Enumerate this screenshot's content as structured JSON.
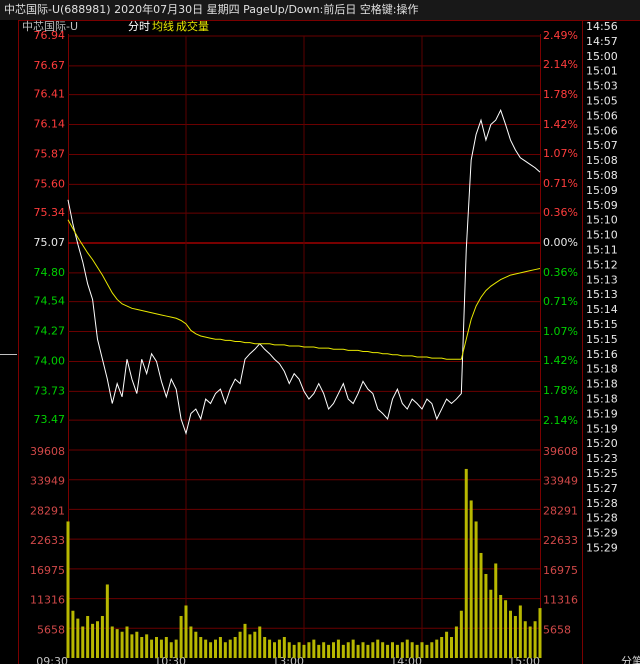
{
  "chart_data": {
    "type": "intraday",
    "title": "中芯国际-U(688981) 2020年07月30日 星期四 PageUp/Down:前后日 空格键:操作",
    "subtitle": "中芯国际-U",
    "x": [
      0,
      2.5,
      5,
      7.5,
      10,
      12.5,
      15,
      17.5,
      20,
      22.5,
      25,
      27.5,
      30,
      32.5,
      35,
      37.5,
      40,
      42.5,
      45,
      47.5,
      50,
      52.5,
      55,
      57.5,
      60,
      62.5,
      65,
      67.5,
      70,
      72.5,
      75,
      77.5,
      80,
      82.5,
      85,
      87.5,
      90,
      92.5,
      95,
      97.5,
      100,
      102.5,
      105,
      107.5,
      110,
      112.5,
      115,
      117.5,
      120,
      122.5,
      125,
      127.5,
      130,
      132.5,
      135,
      137.5,
      140,
      142.5,
      145,
      147.5,
      150,
      152.5,
      155,
      157.5,
      160,
      162.5,
      165,
      167.5,
      170,
      172.5,
      175,
      177.5,
      180,
      182.5,
      185,
      187.5,
      190,
      192.5,
      195,
      197.5,
      200,
      202.5,
      205,
      207.5,
      210,
      212.5,
      215,
      217.5,
      220,
      222.5,
      225,
      227.5,
      230,
      232.5,
      235,
      237.5,
      240
    ],
    "xlim": [
      0,
      240
    ],
    "xticks": [
      {
        "value": 0,
        "label": "09:30"
      },
      {
        "value": 60,
        "label": "10:30"
      },
      {
        "value": 120,
        "label": "13:00"
      },
      {
        "value": 180,
        "label": "14:00"
      },
      {
        "value": 240,
        "label": "15:00"
      }
    ],
    "ylim": [
      73.2,
      76.94
    ],
    "yticks": [
      76.94,
      76.67,
      76.41,
      76.14,
      75.87,
      {
        "value": 75.6,
        "label": "75.60"
      },
      75.34,
      75.07,
      {
        "value": 74.8,
        "label": "74.80"
      },
      74.54,
      74.27,
      {
        "value": 74,
        "label": "74.00"
      },
      73.73,
      73.47
    ],
    "y2lim": [
      -2.49,
      2.49
    ],
    "y2ticks": [
      {
        "value": 2.49,
        "label": "2.49%"
      },
      {
        "value": 2.14,
        "label": "2.14%"
      },
      {
        "value": 1.78,
        "label": "1.78%"
      },
      {
        "value": 1.42,
        "label": "1.42%"
      },
      {
        "value": 1.07,
        "label": "1.07%"
      },
      {
        "value": 0.71,
        "label": "0.71%"
      },
      {
        "value": 0.36,
        "label": "0.36%"
      },
      {
        "value": 0,
        "label": "0.00%"
      },
      {
        "value": -0.36,
        "label": "0.36%"
      },
      {
        "value": -0.71,
        "label": "0.71%"
      },
      {
        "value": -1.07,
        "label": "1.07%"
      },
      {
        "value": -1.42,
        "label": "1.42%"
      },
      {
        "value": -1.78,
        "label": "1.78%"
      },
      {
        "value": -2.14,
        "label": "2.14%"
      }
    ],
    "volume_ylim": [
      0,
      39608
    ],
    "volume_yticks": [
      39608,
      33949,
      28291,
      22633,
      16975,
      11316,
      5658
    ],
    "grid": true,
    "up_color": "#ff3c3c",
    "down_color": "#00d000",
    "flat_color": "#e8e8e8",
    "series": [
      {
        "name": "分时",
        "color": "#ffffff",
        "values": [
          75.46,
          75.24,
          75.06,
          74.9,
          74.7,
          74.56,
          74.2,
          74.02,
          73.84,
          73.62,
          73.8,
          73.68,
          74.02,
          73.84,
          73.71,
          74.02,
          73.89,
          74.07,
          74.0,
          73.82,
          73.68,
          73.84,
          73.75,
          73.48,
          73.35,
          73.53,
          73.57,
          73.48,
          73.66,
          73.62,
          73.71,
          73.75,
          73.62,
          73.75,
          73.84,
          73.8,
          74.02,
          74.07,
          74.11,
          74.16,
          74.11,
          74.07,
          74.02,
          73.98,
          73.91,
          73.8,
          73.89,
          73.84,
          73.73,
          73.66,
          73.71,
          73.8,
          73.71,
          73.57,
          73.62,
          73.71,
          73.8,
          73.66,
          73.62,
          73.71,
          73.82,
          73.75,
          73.71,
          73.57,
          73.53,
          73.48,
          73.66,
          73.75,
          73.62,
          73.57,
          73.66,
          73.62,
          73.57,
          73.66,
          73.62,
          73.48,
          73.57,
          73.66,
          73.62,
          73.66,
          73.71,
          75.01,
          75.82,
          76.05,
          76.18,
          76.0,
          76.14,
          76.18,
          76.27,
          76.14,
          76.0,
          75.91,
          75.84,
          75.81,
          75.78,
          75.75,
          75.71
        ]
      },
      {
        "name": "均线",
        "color": "#e8e800",
        "values": [
          75.28,
          75.2,
          75.12,
          75.05,
          74.98,
          74.92,
          74.85,
          74.78,
          74.7,
          74.62,
          74.56,
          74.52,
          74.5,
          74.48,
          74.47,
          74.46,
          74.45,
          74.44,
          74.43,
          74.42,
          74.41,
          74.4,
          74.39,
          74.37,
          74.34,
          74.28,
          74.25,
          74.23,
          74.22,
          74.21,
          74.2,
          74.2,
          74.19,
          74.19,
          74.18,
          74.18,
          74.17,
          74.17,
          74.16,
          74.16,
          74.16,
          74.16,
          74.15,
          74.15,
          74.15,
          74.14,
          74.14,
          74.14,
          74.13,
          74.13,
          74.13,
          74.12,
          74.12,
          74.12,
          74.11,
          74.11,
          74.11,
          74.1,
          74.1,
          74.1,
          74.09,
          74.09,
          74.08,
          74.08,
          74.07,
          74.07,
          74.06,
          74.06,
          74.05,
          74.05,
          74.05,
          74.04,
          74.04,
          74.04,
          74.03,
          74.03,
          74.03,
          74.02,
          74.02,
          74.02,
          74.02,
          74.2,
          74.38,
          74.5,
          74.58,
          74.64,
          74.68,
          74.71,
          74.74,
          74.76,
          74.78,
          74.79,
          74.8,
          74.81,
          74.82,
          74.83,
          74.84
        ]
      },
      {
        "name": "成交量",
        "color": "#b8b800",
        "axis": "volume",
        "values": [
          26000,
          9000,
          7500,
          6000,
          8000,
          6500,
          7000,
          8000,
          14000,
          6000,
          5500,
          5000,
          6000,
          4500,
          5000,
          4000,
          4500,
          3500,
          4000,
          3500,
          4000,
          3000,
          3500,
          8000,
          10000,
          6000,
          5000,
          4000,
          3500,
          3000,
          3500,
          4000,
          3000,
          3500,
          4000,
          5000,
          6500,
          4500,
          5000,
          6000,
          4000,
          3500,
          3000,
          3500,
          4000,
          3000,
          2500,
          3000,
          2500,
          3000,
          3500,
          2500,
          3000,
          2500,
          3000,
          3500,
          2500,
          3000,
          3500,
          2500,
          3000,
          2500,
          3000,
          3500,
          3000,
          2500,
          3000,
          2500,
          3000,
          3500,
          3000,
          2500,
          3000,
          2500,
          3000,
          3500,
          4000,
          5000,
          4000,
          6000,
          9000,
          36000,
          30000,
          26000,
          20000,
          16000,
          13000,
          18000,
          12000,
          11000,
          9000,
          8000,
          10000,
          7000,
          6000,
          7000,
          9500
        ]
      }
    ]
  },
  "side_panel": {
    "times": [
      "14:56",
      "14:57",
      "15:00",
      "15:01",
      "15:03",
      "15:05",
      "15:06",
      "15:06",
      "15:07",
      "15:08",
      "15:08",
      "15:09",
      "15:09",
      "15:10",
      "15:10",
      "15:11",
      "15:12",
      "15:13",
      "15:13",
      "15:14",
      "15:15",
      "15:15",
      "15:16",
      "15:18",
      "15:18",
      "15:18",
      "15:19",
      "15:19",
      "15:20",
      "15:23",
      "15:25",
      "15:27",
      "15:28",
      "15:28",
      "15:29",
      "15:29"
    ],
    "footer": "分笔"
  }
}
